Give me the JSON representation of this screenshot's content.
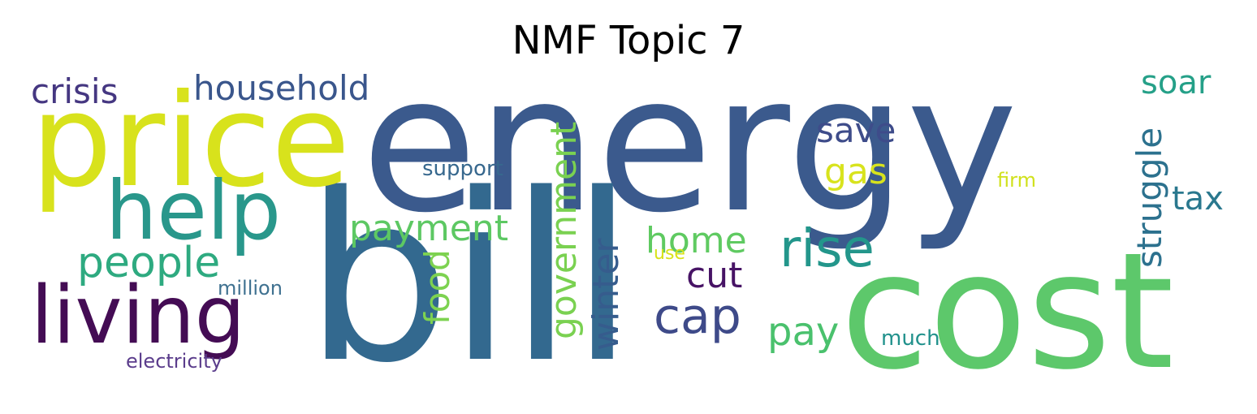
{
  "title": "NMF Topic 7",
  "words": {
    "energy": "energy",
    "bill": "bill",
    "cost": "cost",
    "price": "price",
    "help": "help",
    "living": "living",
    "people": "people",
    "crisis": "crisis",
    "household": "household",
    "million": "million",
    "electricity": "electricity",
    "support": "support",
    "payment": "payment",
    "save": "save",
    "gas": "gas",
    "soar": "soar",
    "tax": "tax",
    "firm": "firm",
    "rise": "rise",
    "home": "home",
    "use": "use",
    "cut": "cut",
    "cap": "cap",
    "pay": "pay",
    "much": "much",
    "food": "food",
    "government": "government",
    "winter": "winter",
    "struggle": "struggle"
  },
  "colors": {
    "energy": "#3b5a8d",
    "bill": "#33698f",
    "cost": "#5dc86b",
    "price": "#d8e21c",
    "help": "#29978b",
    "living": "#440c54",
    "people": "#2eaa80",
    "crisis": "#453781",
    "household": "#3a568c",
    "million": "#3f7190",
    "electricity": "#5b3d8c",
    "support": "#37688e",
    "payment": "#5dc863",
    "save": "#3e4c8a",
    "gas": "#d8e31d",
    "soar": "#25a088",
    "tax": "#2a788e",
    "firm": "#d0e11c",
    "rise": "#23968b",
    "home": "#5fca61",
    "use": "#d8e219",
    "cut": "#471365",
    "cap": "#3e4a89",
    "pay": "#4ac16d",
    "much": "#21918c",
    "food": "#7dd250",
    "government": "#7ad151",
    "winter": "#365c8d",
    "struggle": "#2c718e"
  }
}
